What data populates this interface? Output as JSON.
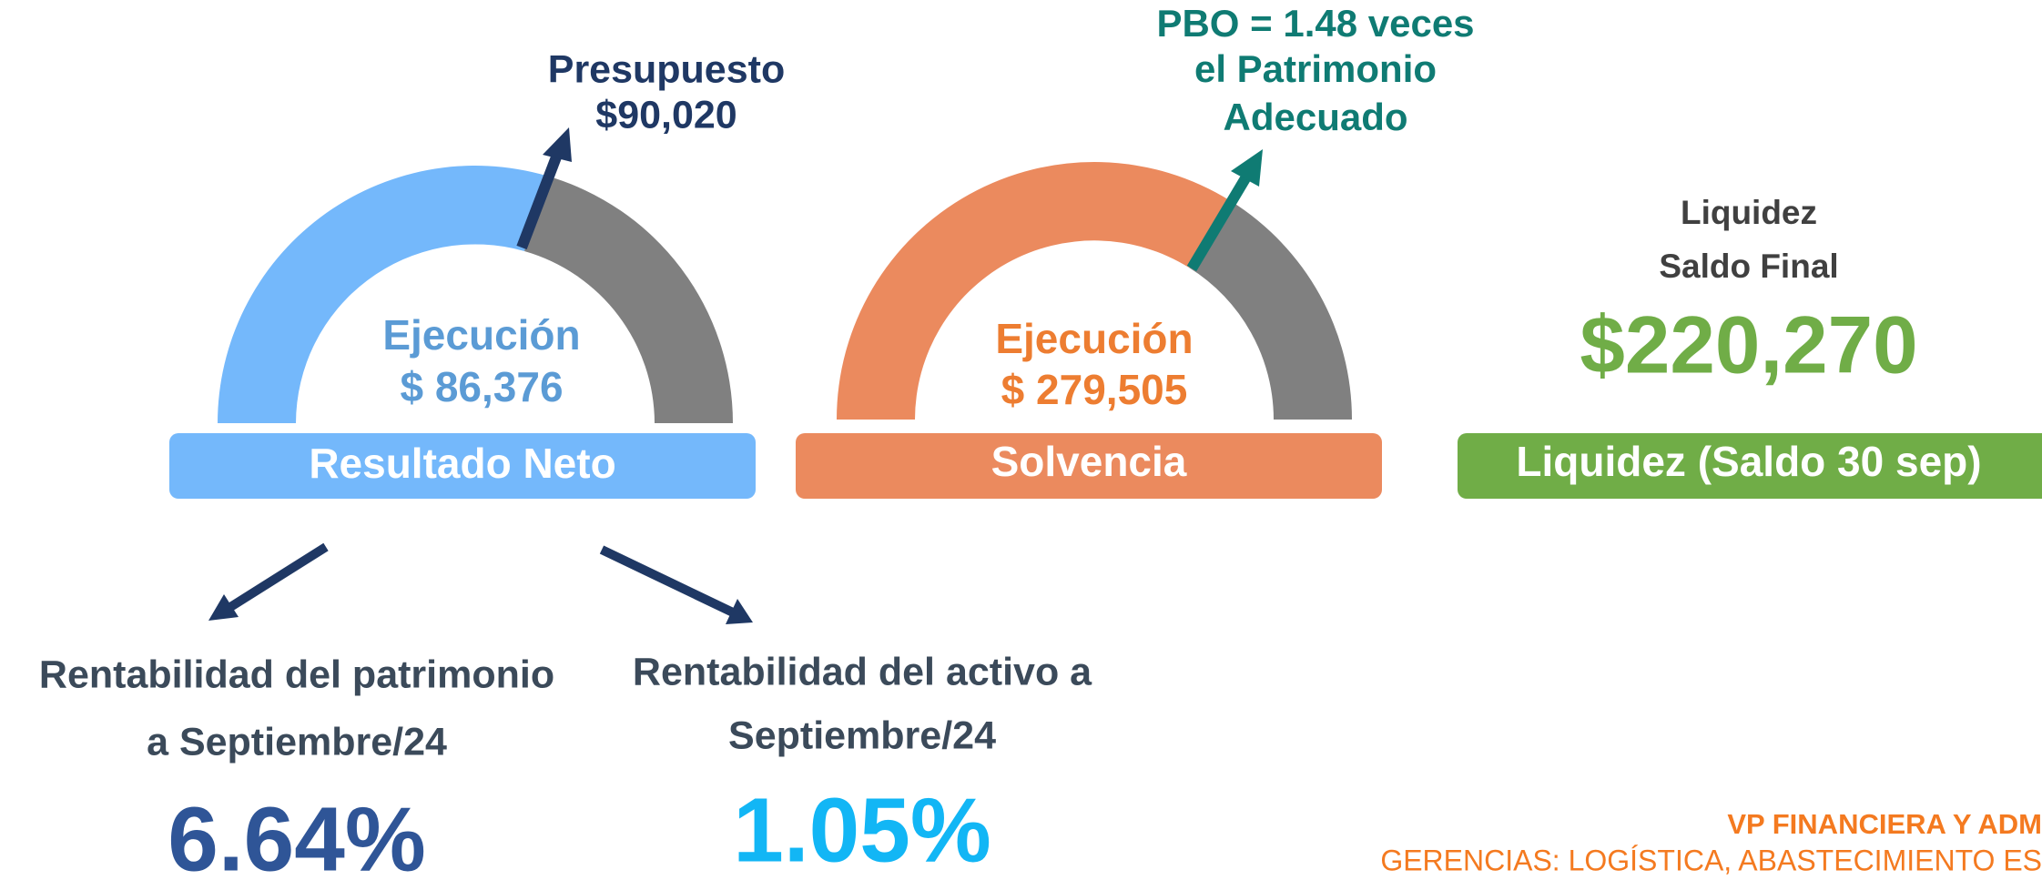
{
  "gauges": [
    {
      "target_label": [
        "Presupuesto",
        "$90,020"
      ],
      "center_label": [
        "Ejecución",
        "$ 86,376"
      ],
      "banner": "Resultado Neto"
    },
    {
      "target_label": [
        "PBO = 1.48 veces",
        "el Patrimonio",
        "Adecuado"
      ],
      "center_label": [
        "Ejecución",
        "$ 279,505"
      ],
      "banner": "Solvencia"
    }
  ],
  "liquidity": {
    "label": [
      "Liquidez",
      "Saldo Final"
    ],
    "value": "$220,270",
    "banner": "Liquidez (Saldo 30 sep)"
  },
  "ratios": [
    {
      "label": [
        "Rentabilidad del patrimonio",
        "a Septiembre/24"
      ],
      "value": "6.64%"
    },
    {
      "label": [
        "Rentabilidad del activo a",
        "Septiembre/24"
      ],
      "value": "1.05%"
    }
  ],
  "footer": {
    "line1": "VP FINANCIERA Y ADM",
    "line2": "GERENCIAS: LOGÍSTICA, ABASTECIMIENTO ES"
  }
}
